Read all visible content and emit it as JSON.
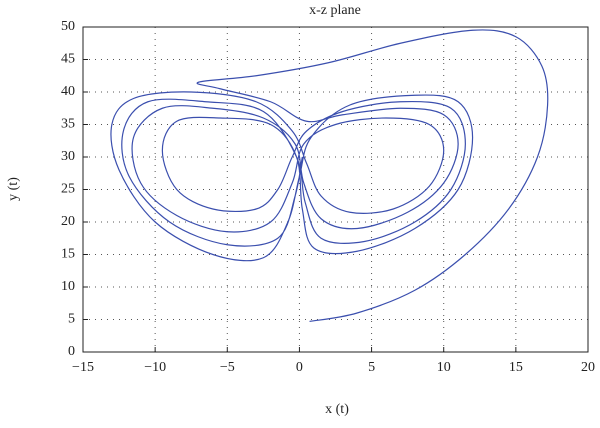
{
  "chart_data": {
    "type": "line",
    "title": "x-z plane",
    "x_label": "x (t)",
    "y_label": "y (t)",
    "color": "#3b4fae",
    "grid": true,
    "xlim": [
      -15,
      20
    ],
    "ylim": [
      0,
      50
    ],
    "xticks": [
      {
        "value": -15,
        "label": "−15"
      },
      {
        "value": -10,
        "label": "−10"
      },
      {
        "value": -5,
        "label": "−5"
      },
      0,
      5,
      10,
      15,
      20
    ],
    "yticks": [
      0,
      5,
      10,
      15,
      20,
      25,
      30,
      35,
      40,
      45,
      50
    ],
    "x": [
      0.7,
      4,
      8,
      11.5,
      14.5,
      16.5,
      17.2,
      16.8,
      15,
      12,
      7,
      2,
      -3,
      -7,
      -5.5,
      -2,
      0.5,
      3,
      7,
      10,
      11,
      10,
      7.5,
      4,
      1.5,
      0.3,
      -0.3,
      -2.5,
      -6,
      -9.5,
      -11.5,
      -11,
      -8.5,
      -5,
      -2,
      -0.5,
      0.3,
      2.5,
      6,
      9,
      10,
      9,
      6.5,
      3.5,
      1.5,
      0.5,
      -0.5,
      -3,
      -7.5,
      -11.5,
      -13,
      -12.5,
      -10,
      -6,
      -2.5,
      -0.8,
      0,
      0.8,
      3.5,
      8,
      11,
      12,
      11,
      8,
      4,
      1,
      0.2,
      -0.2,
      -2,
      -5.5,
      -8.5,
      -9.5,
      -8.5,
      -6,
      -3,
      -1.5,
      -0.5,
      0.5,
      3,
      7,
      10.5,
      11.5,
      10.5,
      8,
      4.5,
      1.5,
      0.4,
      -0.2,
      -2.5,
      -6.5,
      -10.5,
      -12.2,
      -11.8,
      -9,
      -5,
      -1.5,
      -0.3,
      0.2
    ],
    "values": [
      4.7,
      6,
      9.5,
      15,
      22,
      30,
      38,
      44,
      48.5,
      49.5,
      47.5,
      44.5,
      42.5,
      41.5,
      40.5,
      38.5,
      35.5,
      36.5,
      37.5,
      36.5,
      32,
      26,
      21.5,
      19,
      20.5,
      26,
      32,
      36,
      37.5,
      37.5,
      33,
      26,
      21,
      18.5,
      20,
      26,
      32,
      35,
      36,
      35,
      31,
      25.5,
      22,
      21.5,
      24,
      29,
      34,
      38.5,
      40,
      39,
      35,
      28,
      20,
      15,
      14.5,
      20,
      27,
      33,
      38,
      39.5,
      38.5,
      33,
      25,
      19,
      15.5,
      16,
      22,
      30,
      35,
      36,
      35.5,
      31,
      25,
      22,
      22,
      25,
      30,
      34,
      37,
      38.5,
      37.5,
      32,
      25,
      20,
      17,
      17.5,
      23,
      30,
      37,
      38.5,
      38.5,
      34,
      27,
      20,
      16.5,
      17.5,
      24,
      30
    ]
  }
}
